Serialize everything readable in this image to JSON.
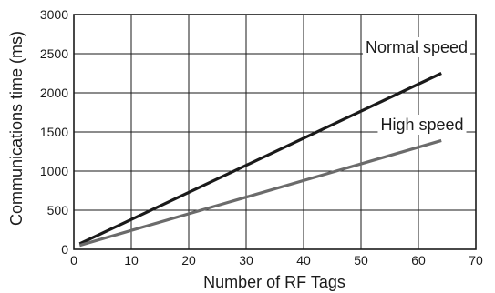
{
  "chart_data": {
    "type": "line",
    "title": "",
    "xlabel": "Number of RF Tags",
    "ylabel": "Communications time (ms)",
    "xlim": [
      0,
      70
    ],
    "ylim": [
      0,
      3000
    ],
    "x_ticks": [
      "0",
      "10",
      "20",
      "30",
      "40",
      "50",
      "60",
      "70"
    ],
    "y_ticks": [
      "0",
      "500",
      "1000",
      "1500",
      "2000",
      "2500",
      "3000"
    ],
    "grid": true,
    "series": [
      {
        "name": "Normal speed",
        "x": [
          1,
          64
        ],
        "y": [
          70,
          2250
        ],
        "color": "#1a1a1a"
      },
      {
        "name": "High speed",
        "x": [
          1,
          64
        ],
        "y": [
          50,
          1390
        ],
        "color": "#6b6b6b"
      }
    ]
  }
}
